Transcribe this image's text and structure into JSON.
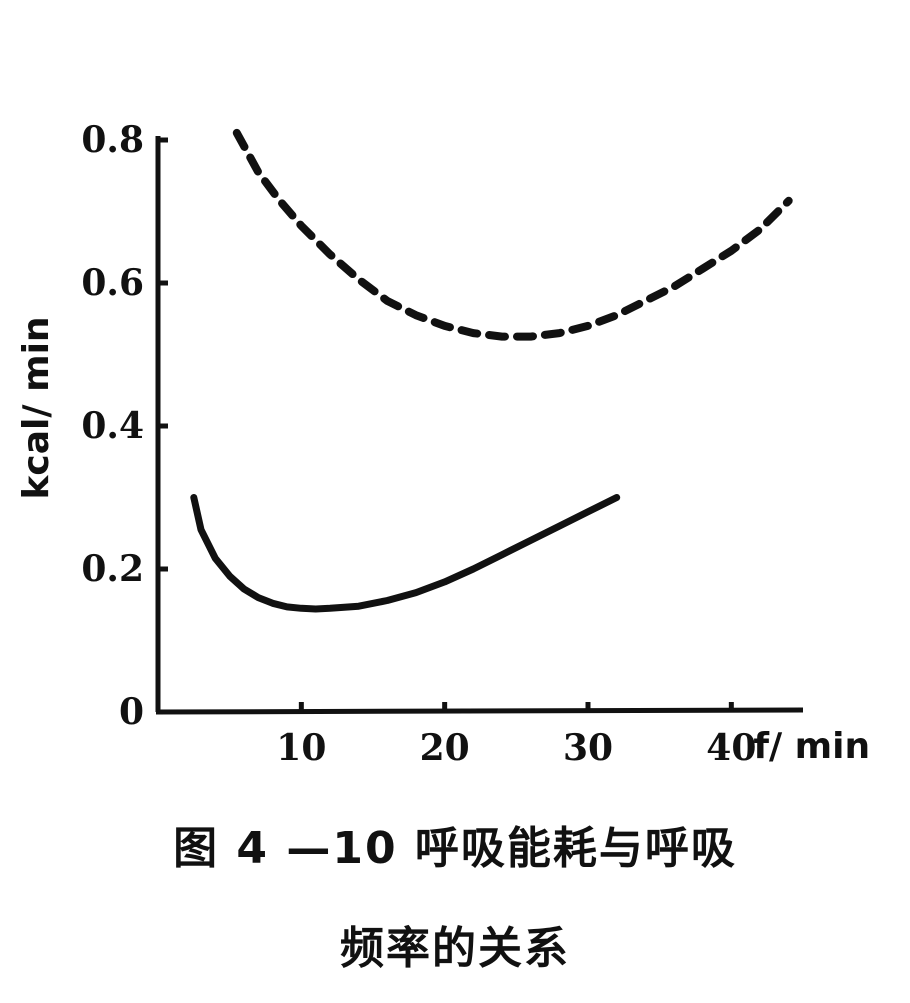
{
  "chart_data": {
    "type": "line",
    "xlabel": "f/ min",
    "ylabel": "kcal/ min",
    "xlim": [
      0,
      45
    ],
    "ylim": [
      0,
      0.8
    ],
    "x_ticks": [
      {
        "value": 10,
        "label": "10"
      },
      {
        "value": 20,
        "label": "20"
      },
      {
        "value": 30,
        "label": "30"
      },
      {
        "value": 40,
        "label": "40"
      }
    ],
    "y_ticks": [
      {
        "value": 0,
        "label": "0"
      },
      {
        "value": 0.2,
        "label": "0.2"
      },
      {
        "value": 0.4,
        "label": "0.4"
      },
      {
        "value": 0.6,
        "label": "0.6"
      },
      {
        "value": 0.8,
        "label": "0.8"
      }
    ],
    "grid": false,
    "series": [
      {
        "style": "dashed",
        "color": "#111111",
        "points": [
          [
            5.5,
            0.81
          ],
          [
            7,
            0.755
          ],
          [
            8.5,
            0.715
          ],
          [
            10,
            0.68
          ],
          [
            12,
            0.64
          ],
          [
            14,
            0.605
          ],
          [
            16,
            0.575
          ],
          [
            18,
            0.555
          ],
          [
            20,
            0.54
          ],
          [
            22,
            0.53
          ],
          [
            24,
            0.525
          ],
          [
            26,
            0.525
          ],
          [
            28,
            0.53
          ],
          [
            30,
            0.54
          ],
          [
            32,
            0.555
          ],
          [
            34,
            0.575
          ],
          [
            36,
            0.595
          ],
          [
            38,
            0.62
          ],
          [
            40,
            0.645
          ],
          [
            42,
            0.675
          ],
          [
            44,
            0.715
          ]
        ]
      },
      {
        "style": "solid",
        "color": "#111111",
        "points": [
          [
            2.5,
            0.3
          ],
          [
            3,
            0.255
          ],
          [
            4,
            0.215
          ],
          [
            5,
            0.19
          ],
          [
            6,
            0.172
          ],
          [
            7,
            0.16
          ],
          [
            8,
            0.152
          ],
          [
            9,
            0.147
          ],
          [
            10,
            0.145
          ],
          [
            11,
            0.144
          ],
          [
            12,
            0.145
          ],
          [
            14,
            0.148
          ],
          [
            16,
            0.156
          ],
          [
            18,
            0.167
          ],
          [
            20,
            0.182
          ],
          [
            22,
            0.2
          ],
          [
            24,
            0.22
          ],
          [
            26,
            0.24
          ],
          [
            28,
            0.26
          ],
          [
            30,
            0.28
          ],
          [
            32,
            0.3
          ]
        ]
      }
    ]
  },
  "caption": {
    "line1": "图 4 —10   呼吸能耗与呼吸",
    "line2": "频率的关系"
  }
}
